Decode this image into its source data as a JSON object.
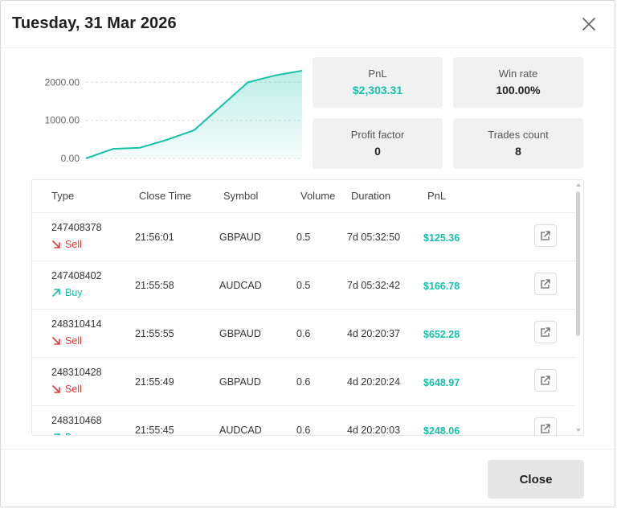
{
  "modal": {
    "title": "Tuesday, 31 Mar 2026"
  },
  "stats": {
    "pnl": {
      "label": "PnL",
      "value": "$2,303.31"
    },
    "win_rate": {
      "label": "Win rate",
      "value": "100.00%"
    },
    "profit_factor": {
      "label": "Profit factor",
      "value": "0"
    },
    "trades_count": {
      "label": "Trades count",
      "value": "8"
    }
  },
  "chart_data": {
    "type": "area",
    "y_ticks": [
      "2000.00",
      "1000.00",
      "0.00"
    ],
    "ylim": [
      0,
      2450
    ],
    "values": [
      0,
      250,
      280,
      490,
      740,
      1370,
      2000,
      2180,
      2303.31
    ],
    "grid": true,
    "color": "#14c1a8"
  },
  "table": {
    "headers": [
      "Type",
      "Close Time",
      "Symbol",
      "Volume",
      "Duration",
      "PnL"
    ],
    "rows": [
      {
        "id": "247408378",
        "side": "Sell",
        "close_time": "21:56:01",
        "symbol": "GBPAUD",
        "volume": "0.5",
        "duration": "7d 05:32:50",
        "pnl": "$125.36"
      },
      {
        "id": "247408402",
        "side": "Buy",
        "close_time": "21:55:58",
        "symbol": "AUDCAD",
        "volume": "0.5",
        "duration": "7d 05:32:42",
        "pnl": "$166.78"
      },
      {
        "id": "248310414",
        "side": "Sell",
        "close_time": "21:55:55",
        "symbol": "GBPAUD",
        "volume": "0.6",
        "duration": "4d 20:20:37",
        "pnl": "$652.28"
      },
      {
        "id": "248310428",
        "side": "Sell",
        "close_time": "21:55:49",
        "symbol": "GBPAUD",
        "volume": "0.6",
        "duration": "4d 20:20:24",
        "pnl": "$648.97"
      },
      {
        "id": "248310468",
        "side": "Buy",
        "close_time": "21:55:45",
        "symbol": "AUDCAD",
        "volume": "0.6",
        "duration": "4d 20:20:03",
        "pnl": "$248.06"
      }
    ]
  },
  "footer": {
    "close_label": "Close"
  },
  "colors": {
    "accent": "#14c1a8",
    "sell": "#e53935"
  }
}
